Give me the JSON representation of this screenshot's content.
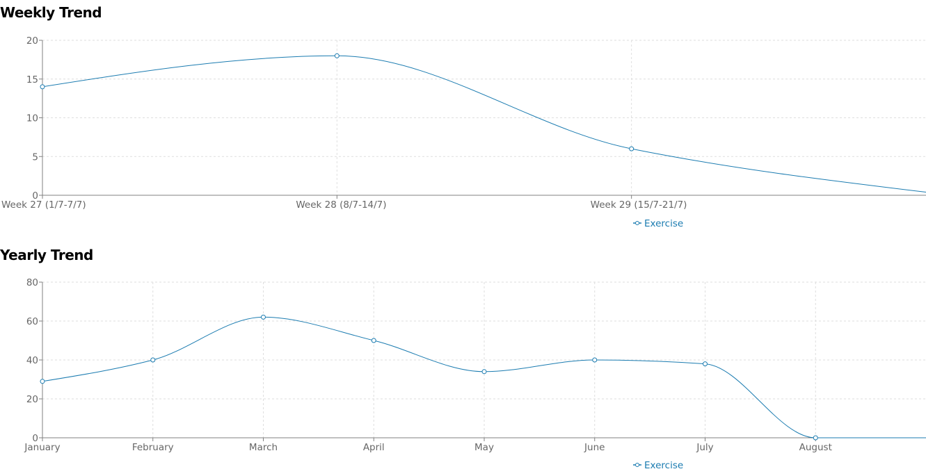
{
  "charts": {
    "weekly": {
      "title": "Weekly Trend"
    },
    "yearly": {
      "title": "Yearly Trend"
    }
  },
  "colors": {
    "series": "#1a7bb0",
    "grid": "#dedede",
    "axis": "#808080",
    "tick_text": "#666666"
  },
  "chart_data": [
    {
      "type": "line",
      "title": "Weekly Trend",
      "categories": [
        "Week 27 (1/7-7/7)",
        "Week 28 (8/7-14/7)",
        "Week 29 (15/7-21/7)",
        ""
      ],
      "series": [
        {
          "name": "Exercise",
          "values": [
            14,
            18,
            6,
            0.4
          ]
        }
      ],
      "ylim": [
        0,
        20
      ],
      "yticks": [
        0,
        5,
        10,
        15,
        20
      ],
      "grid": true,
      "legend": "bottom-center",
      "curve": "monotone"
    },
    {
      "type": "line",
      "title": "Yearly Trend",
      "categories": [
        "January",
        "February",
        "March",
        "April",
        "May",
        "June",
        "July",
        "August",
        ""
      ],
      "series": [
        {
          "name": "Exercise",
          "values": [
            29,
            40,
            62,
            50,
            34,
            40,
            38,
            0,
            0
          ]
        }
      ],
      "ylim": [
        0,
        80
      ],
      "yticks": [
        0,
        20,
        40,
        60,
        80
      ],
      "grid": true,
      "legend": "bottom-center",
      "curve": "monotone"
    }
  ]
}
